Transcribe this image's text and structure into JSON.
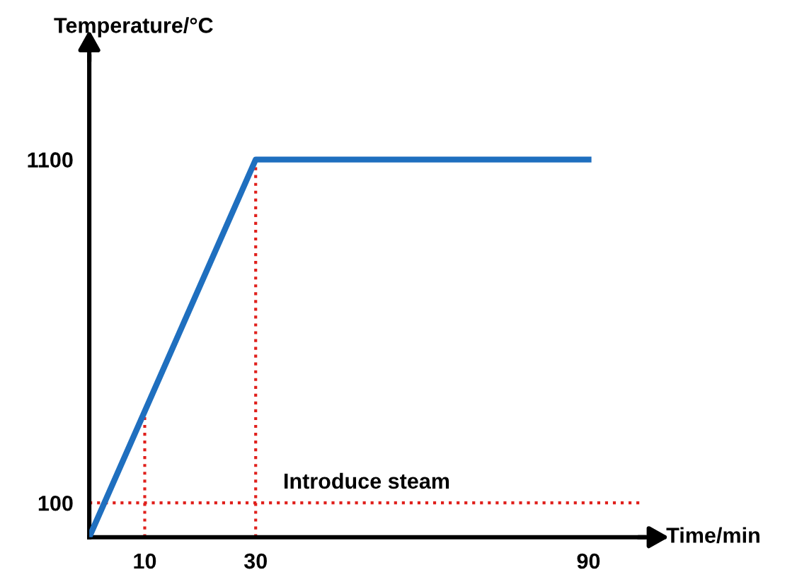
{
  "chart_data": {
    "type": "line",
    "xlabel": "Time/min",
    "ylabel": "Temperature/°C",
    "x": [
      0,
      30,
      90
    ],
    "series": [
      {
        "color": "#1f6fbf",
        "values": [
          0,
          1100,
          1100
        ]
      }
    ],
    "xlim": [
      0,
      100
    ],
    "ylim": [
      0,
      1400
    ],
    "xticks": [
      10,
      30,
      90
    ],
    "yticks": [
      100,
      1100
    ],
    "ref_lines": [
      {
        "axis": "y",
        "value": 100,
        "label": "Introduce steam",
        "color": "#e0201c",
        "line_style": "dotted"
      },
      {
        "axis": "x",
        "value": 10,
        "color": "#e0201c",
        "line_style": "dotted"
      },
      {
        "axis": "x",
        "value": 30,
        "color": "#e0201c",
        "line_style": "dotted"
      }
    ],
    "grid": false,
    "marker": "none",
    "line_style": "solid"
  }
}
